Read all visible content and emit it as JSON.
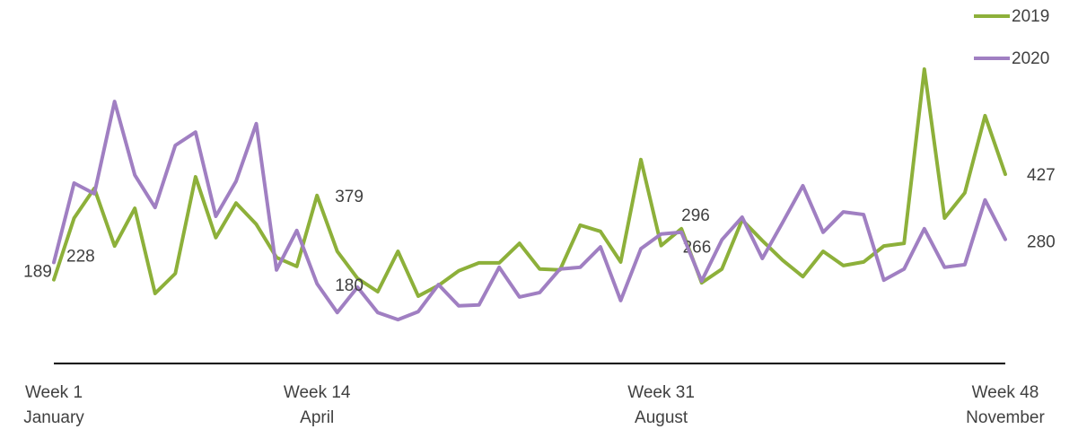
{
  "chart_data": {
    "type": "line",
    "categories": [
      "Week 1",
      null,
      null,
      null,
      null,
      null,
      null,
      null,
      null,
      null,
      null,
      null,
      null,
      "Week 14",
      null,
      null,
      null,
      null,
      null,
      null,
      null,
      null,
      null,
      null,
      null,
      null,
      null,
      null,
      null,
      null,
      "Week 31",
      null,
      null,
      null,
      null,
      null,
      null,
      null,
      null,
      null,
      null,
      null,
      null,
      null,
      null,
      null,
      null,
      "Week 48"
    ],
    "sublabels": [
      "January",
      null,
      null,
      null,
      null,
      null,
      null,
      null,
      null,
      null,
      null,
      null,
      null,
      "April",
      null,
      null,
      null,
      null,
      null,
      null,
      null,
      null,
      null,
      null,
      null,
      null,
      null,
      null,
      null,
      null,
      "August",
      null,
      null,
      null,
      null,
      null,
      null,
      null,
      null,
      null,
      null,
      null,
      null,
      null,
      null,
      null,
      null,
      "November"
    ],
    "series": [
      {
        "name": "2019",
        "color": "#8db03a",
        "data_labels": [
          0,
          13,
          30,
          47
        ],
        "values": [
          189,
          328,
          395,
          265,
          350,
          158,
          203,
          421,
          284,
          362,
          314,
          239,
          219,
          379,
          253,
          192,
          162,
          253,
          152,
          176,
          209,
          227,
          227,
          271,
          213,
          211,
          312,
          298,
          229,
          460,
          266,
          304,
          182,
          213,
          324,
          277,
          233,
          196,
          253,
          221,
          229,
          265,
          271,
          664,
          328,
          385,
          559,
          427
        ]
      },
      {
        "name": "2020",
        "color": "#a07fc2",
        "data_labels": [
          0,
          13,
          31,
          47
        ],
        "values": [
          228,
          407,
          383,
          591,
          425,
          352,
          492,
          522,
          332,
          411,
          541,
          211,
          300,
          180,
          115,
          172,
          115,
          99,
          117,
          178,
          130,
          132,
          217,
          150,
          160,
          213,
          217,
          263,
          142,
          259,
          292,
          296,
          186,
          279,
          330,
          237,
          318,
          401,
          296,
          342,
          336,
          188,
          213,
          304,
          217,
          223,
          369,
          280
        ]
      }
    ],
    "ylim": [
      0,
      820
    ],
    "legend": "upper right"
  }
}
